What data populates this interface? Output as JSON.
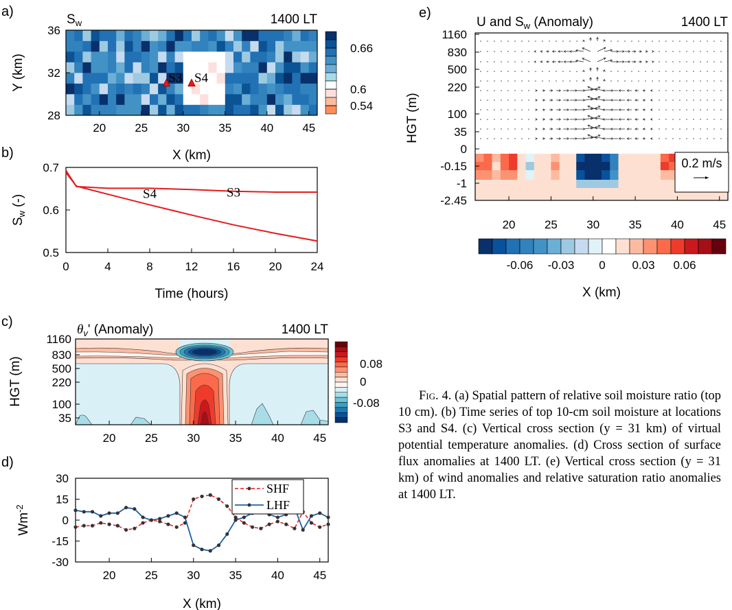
{
  "figure": {
    "caption_label": "Fig. 4.",
    "caption_text": "(a) Spatial pattern of relative soil moisture ratio (top 10 cm). (b) Time series of top 10-cm soil moisture at locations S3 and S4. (c) Vertical cross section (y = 31 km) of virtual potential temperature anomalies. (d) Cross section of surface flux anomalies at 1400 LT. (e) Vertical cross section (y = 31 km) of wind anomalies and relative saturation ratio anomalies at 1400 LT."
  },
  "chart_data": [
    {
      "panel": "a)",
      "type": "heatmap",
      "title_left": "S",
      "title_left_sub": "w",
      "title_right": "1400 LT",
      "xlabel": "X (km)",
      "ylabel": "Y (km)",
      "xlim": [
        16,
        46
      ],
      "ylim": [
        28,
        36
      ],
      "xticks": [
        20,
        25,
        30,
        35,
        40,
        45
      ],
      "yticks": [
        28,
        32,
        36
      ],
      "colorbar_labels": [
        "0.66",
        "0.6",
        "0.54"
      ],
      "colorbar_colors": [
        "#08306b",
        "#0b5394",
        "#2171b5",
        "#4292c6",
        "#6baed6",
        "#a6dbe8",
        "#ffffff",
        "#fde0dd",
        "#fcbba1",
        "#fc8d59"
      ],
      "dry_patch": {
        "x": [
          29.5,
          34.5
        ],
        "y": [
          28.5,
          33.5
        ]
      },
      "markers": [
        {
          "label": "S3",
          "x": 28,
          "y": 31
        },
        {
          "label": "S4",
          "x": 31,
          "y": 31
        }
      ]
    },
    {
      "panel": "b)",
      "type": "line",
      "xlabel": "Time (hours)",
      "ylabel": "S",
      "ylabel_sub": "w",
      "ylabel_tail": " (-)",
      "xlim": [
        0,
        24
      ],
      "ylim": [
        0.5,
        0.7
      ],
      "xticks": [
        0,
        4,
        8,
        12,
        16,
        20,
        24
      ],
      "yticks": [
        0.5,
        0.6,
        0.7
      ],
      "ytick_labels": [
        "0.5",
        "0.6",
        "0.7"
      ],
      "series": [
        {
          "name": "S3",
          "x": [
            0,
            1,
            4,
            8,
            12,
            16,
            20,
            24
          ],
          "y": [
            0.693,
            0.655,
            0.651,
            0.651,
            0.648,
            0.644,
            0.642,
            0.642
          ]
        },
        {
          "name": "S4",
          "x": [
            0,
            1,
            4,
            8,
            12,
            16,
            20,
            24
          ],
          "y": [
            0.688,
            0.656,
            0.637,
            0.612,
            0.588,
            0.565,
            0.545,
            0.527
          ]
        }
      ]
    },
    {
      "panel": "c)",
      "type": "heatmap",
      "title_left": "θ",
      "title_left_sub": "v",
      "title_left_tail": "' (Anomaly)",
      "title_right": "1400 LT",
      "ylabel": "HGT (m)",
      "xticks": [
        20,
        25,
        30,
        35,
        40,
        45
      ],
      "ytick_labels": [
        "1160",
        "830",
        "500",
        "220",
        "100",
        "35"
      ],
      "colorbar_labels": [
        "0.08",
        "0",
        "-0.08"
      ],
      "colorbar_colors": [
        "#67000d",
        "#a50f15",
        "#cb181d",
        "#ef3b2c",
        "#fb6a4a",
        "#fc9272",
        "#fcbba1",
        "#fee0d2",
        "#fff5f0",
        "#d9f0f7",
        "#a8dde8",
        "#6bc3d6",
        "#3a9fc2",
        "#1f78b4",
        "#08519c",
        "#08306b"
      ]
    },
    {
      "panel": "d)",
      "type": "line",
      "xlabel": "X (km)",
      "ylabel": "Wm",
      "ylabel_sup": "-2",
      "xlim": [
        16,
        46
      ],
      "ylim": [
        -30,
        30
      ],
      "xticks": [
        20,
        25,
        30,
        35,
        40,
        45
      ],
      "yticks": [
        -30,
        -15,
        0,
        15,
        30
      ],
      "series": [
        {
          "name": "SHF",
          "color": "#e41a1c",
          "x": [
            16,
            17,
            18,
            19,
            20,
            21,
            22,
            23,
            24,
            25,
            26,
            27,
            28,
            29,
            30,
            31,
            32,
            33,
            34,
            35,
            36,
            37,
            38,
            39,
            40,
            41,
            42,
            43,
            44,
            45,
            46
          ],
          "y": [
            -5,
            -4,
            -4,
            -2,
            -3,
            -4,
            -7,
            -6,
            -2,
            0,
            -1,
            -3,
            -5,
            -2,
            15,
            17,
            18,
            15,
            10,
            2,
            -2,
            -5,
            -6,
            -3,
            -1,
            -3,
            -6,
            6,
            -2,
            -5,
            -3
          ]
        },
        {
          "name": "LHF",
          "color": "#1f5fa8",
          "x": [
            16,
            17,
            18,
            19,
            20,
            21,
            22,
            23,
            24,
            25,
            26,
            27,
            28,
            29,
            30,
            31,
            32,
            33,
            34,
            35,
            36,
            37,
            38,
            39,
            40,
            41,
            42,
            43,
            44,
            45,
            46
          ],
          "y": [
            7,
            6,
            6,
            3,
            5,
            5,
            9,
            8,
            2,
            0,
            1,
            3,
            5,
            2,
            -18,
            -21,
            -22,
            -18,
            -10,
            0,
            2,
            5,
            9,
            4,
            2,
            4,
            9,
            -7,
            3,
            5,
            2
          ]
        }
      ]
    },
    {
      "panel": "e)",
      "type": "heatmap",
      "title_left": "U and S",
      "title_left_sub": "w",
      "title_left_tail": " (Anomaly)",
      "title_right": "1400 LT",
      "xlabel": "X (km)",
      "ylabel": "HGT (m)",
      "xticks": [
        20,
        25,
        30,
        35,
        40,
        45
      ],
      "ytick_labels": [
        "1160",
        "830",
        "500",
        "220",
        "100",
        "35",
        "0",
        "-0.15",
        "-1",
        "-2.45"
      ],
      "reference_vector_label": "0.2 m/s",
      "colorbar_labels": [
        "-0.06",
        "-0.03",
        "0",
        "0.03",
        "0.06"
      ],
      "colorbar_ticks": [
        -0.06,
        -0.03,
        0,
        0.03,
        0.06
      ],
      "colorbar_range": [
        -0.09,
        0.09
      ],
      "colorbar_colors": [
        "#08306b",
        "#08519c",
        "#2171b5",
        "#3182bd",
        "#4292c6",
        "#6baed6",
        "#9ecae1",
        "#c6dbef",
        "#e0f3f8",
        "#ffffff",
        "#fee0d2",
        "#fcbba1",
        "#fc9272",
        "#fb6a4a",
        "#ef3b2c",
        "#cb181d",
        "#a50f15",
        "#67000d"
      ]
    }
  ]
}
